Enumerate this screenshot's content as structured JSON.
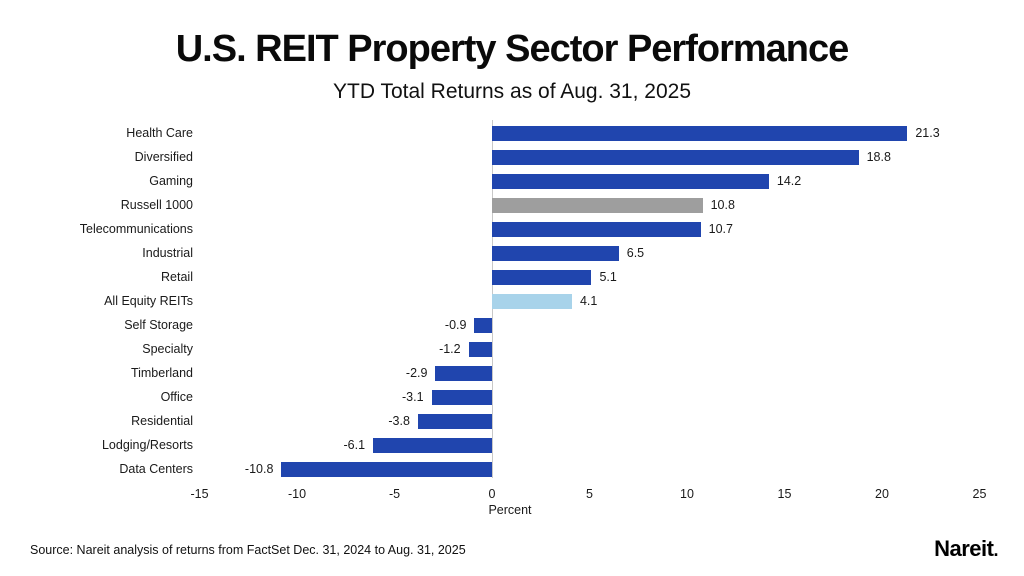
{
  "title": "U.S. REIT Property Sector Performance",
  "subtitle": "YTD Total Returns as of Aug. 31, 2025",
  "footer": {
    "source": "Source: Nareit analysis of returns from FactSet Dec. 31, 2024 to Aug. 31, 2025",
    "logo_text": "Nareit",
    "logo_dot": "."
  },
  "colors": {
    "sector_blue": "#2045ae",
    "russell_gray": "#9e9e9e",
    "all_equity_light_blue": "#a8d3ea",
    "zero_axis_line": "#c8c8c8"
  },
  "chart_data": {
    "type": "bar",
    "orientation": "horizontal",
    "title": "U.S. REIT Property Sector Performance",
    "subtitle": "YTD Total Returns as of Aug. 31, 2025",
    "xlabel": "Percent",
    "ylabel": "",
    "xlim": [
      -15,
      25
    ],
    "xticks": [
      -15,
      -10,
      -5,
      0,
      5,
      10,
      15,
      20,
      25
    ],
    "grid": false,
    "value_labels": true,
    "categories": [
      "Health Care",
      "Diversified",
      "Gaming",
      "Russell 1000",
      "Telecommunications",
      "Industrial",
      "Retail",
      "All Equity REITs",
      "Self Storage",
      "Specialty",
      "Timberland",
      "Office",
      "Residential",
      "Lodging/Resorts",
      "Data Centers"
    ],
    "values": [
      21.3,
      18.8,
      14.2,
      10.8,
      10.7,
      6.5,
      5.1,
      4.1,
      -0.9,
      -1.2,
      -2.9,
      -3.1,
      -3.8,
      -6.1,
      -10.8
    ],
    "bar_colors": [
      "#2045ae",
      "#2045ae",
      "#2045ae",
      "#9e9e9e",
      "#2045ae",
      "#2045ae",
      "#2045ae",
      "#a8d3ea",
      "#2045ae",
      "#2045ae",
      "#2045ae",
      "#2045ae",
      "#2045ae",
      "#2045ae",
      "#2045ae"
    ]
  }
}
